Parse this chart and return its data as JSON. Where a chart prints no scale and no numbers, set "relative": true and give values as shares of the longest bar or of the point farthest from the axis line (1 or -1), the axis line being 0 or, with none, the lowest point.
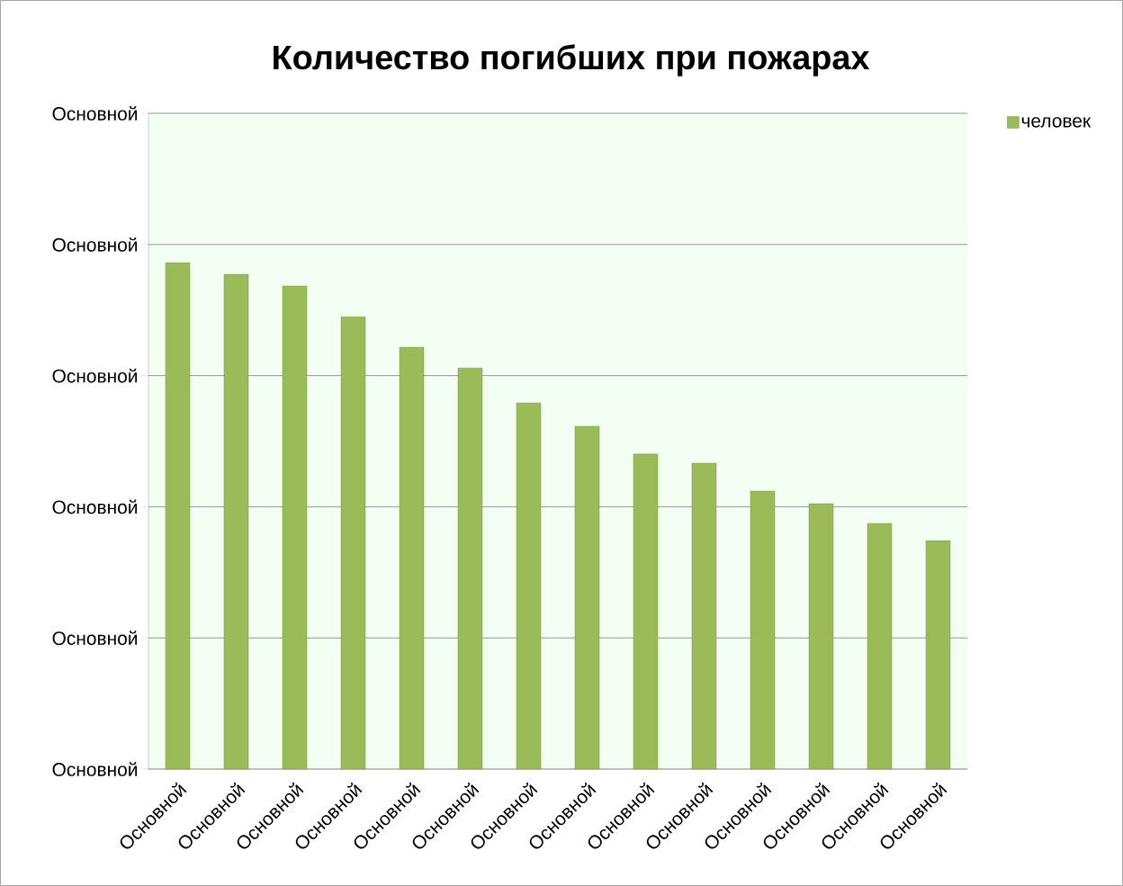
{
  "chart_data": {
    "type": "bar",
    "title": "Количество погибших при пожарах",
    "categories": [
      "Основной",
      "Основной",
      "Основной",
      "Основной",
      "Основной",
      "Основной",
      "Основной",
      "Основной",
      "Основной",
      "Основной",
      "Основной",
      "Основной",
      "Основной",
      "Основной"
    ],
    "series": [
      {
        "name": "человек",
        "color": "#9bbb59",
        "values": [
          1,
          0.977,
          0.954,
          0.893,
          0.833,
          0.792,
          0.723,
          0.677,
          0.622,
          0.604,
          0.549,
          0.524,
          0.485,
          0.451
        ]
      }
    ],
    "relative": true,
    "annotations": [
      "Основной",
      "Основной",
      "Основной",
      "Основной",
      "Основной",
      "Основной"
    ],
    "grid": "y",
    "legend": "top right"
  }
}
